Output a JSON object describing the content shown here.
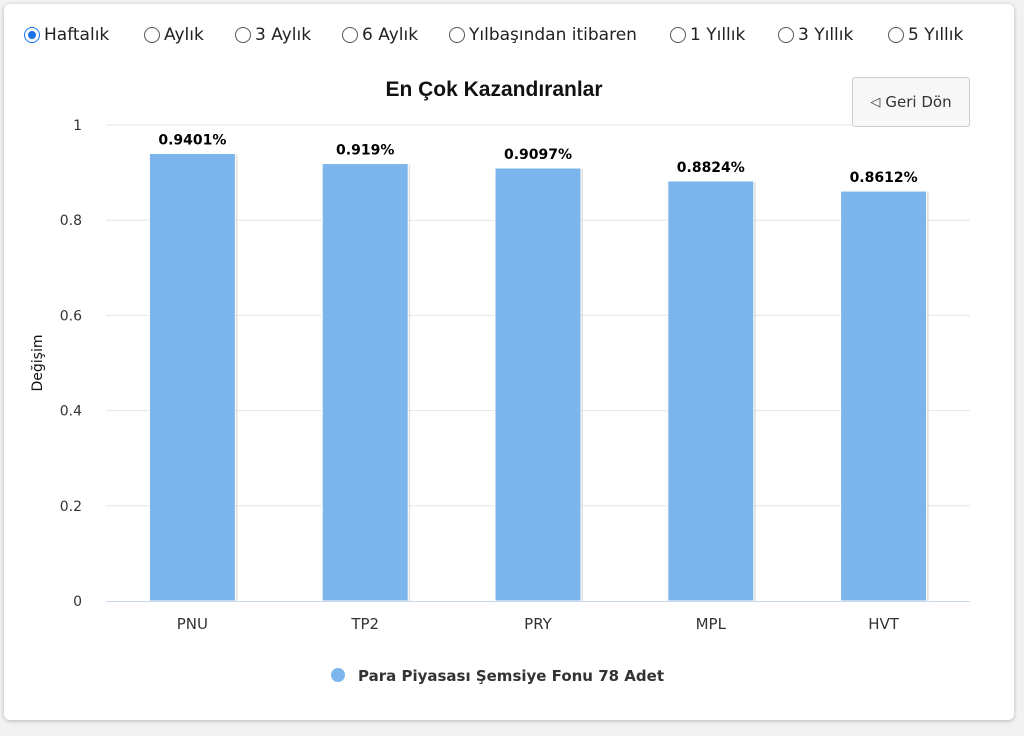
{
  "periods": [
    {
      "label": "Haftalık",
      "checked": true
    },
    {
      "label": "Aylık",
      "checked": false
    },
    {
      "label": "3 Aylık",
      "checked": false
    },
    {
      "label": "6 Aylık",
      "checked": false
    },
    {
      "label": "Yılbaşından itibaren",
      "checked": false
    },
    {
      "label": "1 Yıllık",
      "checked": false
    },
    {
      "label": "3 Yıllık",
      "checked": false
    },
    {
      "label": "5 Yıllık",
      "checked": false
    }
  ],
  "back_button": {
    "icon": "back-triangle-icon",
    "label": "Geri Dön"
  },
  "chart_data": {
    "type": "bar",
    "title": "En Çok Kazandıranlar",
    "ylabel": "Değişim",
    "xlabel": "",
    "categories": [
      "PNU",
      "TP2",
      "PRY",
      "MPL",
      "HVT"
    ],
    "series": [
      {
        "name": "Para Piyasası Şemsiye Fonu 78 Adet",
        "values": [
          0.9401,
          0.919,
          0.9097,
          0.8824,
          0.8612
        ],
        "color": "#7cb5ec"
      }
    ],
    "data_labels": [
      "0.9401%",
      "0.919%",
      "0.9097%",
      "0.8824%",
      "0.8612%"
    ],
    "ylim": [
      0,
      1
    ],
    "yticks": [
      {
        "value": 0,
        "label": "0"
      },
      {
        "value": 0.2,
        "label": "0.2"
      },
      {
        "value": 0.4,
        "label": "0.4"
      },
      {
        "value": 0.6,
        "label": "0.6"
      },
      {
        "value": 0.8,
        "label": "0.8"
      },
      {
        "value": 1,
        "label": "1"
      }
    ],
    "grid": true,
    "legend": "bottom-center"
  }
}
